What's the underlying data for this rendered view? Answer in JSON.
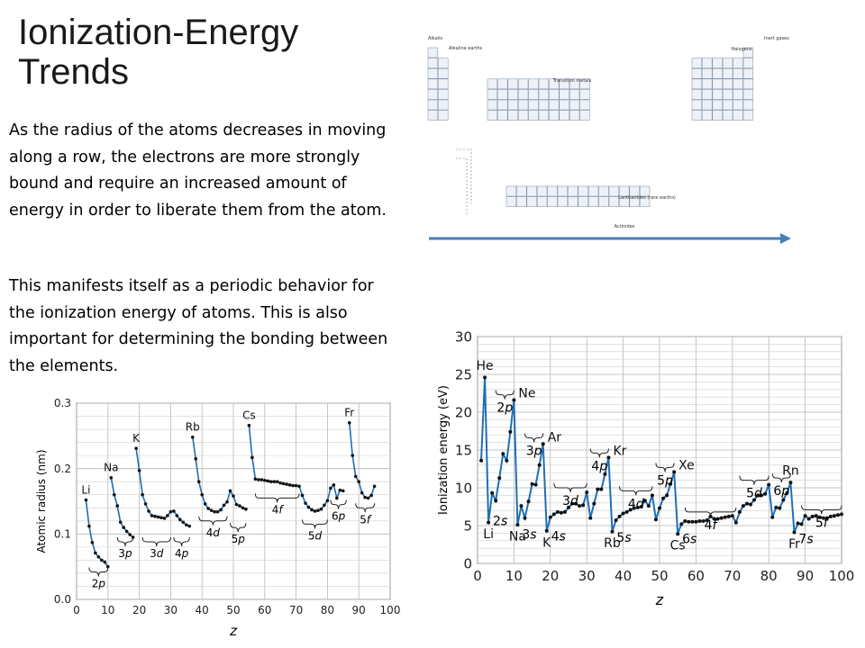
{
  "slide": {
    "title_line1": "Ionization-Energy",
    "title_line2": "Trends",
    "paragraph1": "As the radius of the atoms decreases in moving along a row, the electrons are more strongly bound and require an increased amount of energy in order to liberate them from the atom.",
    "paragraph2": "This manifests itself as a periodic behavior for the ionization energy of atoms.  This is also important for determining the bonding between the elements."
  },
  "periodic_table": {
    "labels": {
      "alkalis": "Alkalis",
      "alkaline_earths": "Alkaline earths",
      "transition_metals": "Transition metals",
      "halogens": "Halogens",
      "inert_gases": "Inert gases",
      "lanthanides": "Lanthanides (rare earths)",
      "actinides": "Actinides"
    },
    "arrow_color": "#4a7ebb"
  },
  "chart_data": [
    {
      "type": "line",
      "xlabel": "Z",
      "ylabel": "Atomic radius (nm)",
      "xlim": [
        0,
        100
      ],
      "ylim": [
        0.0,
        0.3
      ],
      "xticks": [
        0,
        10,
        20,
        30,
        40,
        50,
        60,
        70,
        80,
        90,
        100
      ],
      "xtick_labels": [
        "0",
        "10",
        "20",
        "30",
        "40",
        "50",
        "60",
        "70",
        "80",
        "90",
        "100"
      ],
      "yticks": [
        0.0,
        0.1,
        0.2,
        0.3
      ],
      "ytick_labels": [
        "0.0",
        "0.1",
        "0.2",
        "0.3"
      ],
      "grid": true,
      "line_color": "#1f6fb5",
      "series": [
        {
          "x": [
            3,
            4,
            5,
            6,
            7,
            8,
            9,
            10
          ],
          "y": [
            0.152,
            0.112,
            0.087,
            0.071,
            0.065,
            0.06,
            0.057,
            0.05
          ]
        },
        {
          "x": [
            11,
            12,
            13,
            14,
            15,
            16,
            17,
            18
          ],
          "y": [
            0.186,
            0.16,
            0.143,
            0.118,
            0.11,
            0.104,
            0.099,
            0.095
          ]
        },
        {
          "x": [
            19,
            20,
            21,
            22,
            23,
            24,
            25,
            26,
            27,
            28,
            29,
            30,
            31,
            32,
            33,
            34,
            35,
            36
          ],
          "y": [
            0.231,
            0.197,
            0.16,
            0.146,
            0.135,
            0.128,
            0.127,
            0.126,
            0.125,
            0.124,
            0.128,
            0.134,
            0.135,
            0.128,
            0.122,
            0.118,
            0.114,
            0.112
          ]
        },
        {
          "x": [
            37,
            38,
            39,
            40,
            41,
            42,
            43,
            44,
            45,
            46,
            47,
            48,
            49,
            50,
            51,
            52,
            53,
            54
          ],
          "y": [
            0.248,
            0.215,
            0.18,
            0.16,
            0.146,
            0.139,
            0.136,
            0.134,
            0.134,
            0.137,
            0.144,
            0.149,
            0.166,
            0.158,
            0.145,
            0.143,
            0.14,
            0.138
          ]
        },
        {
          "x": [
            55,
            56,
            57,
            58,
            59,
            60,
            61,
            62,
            63,
            64,
            65,
            66,
            67,
            68,
            69,
            70,
            71,
            72,
            73,
            74,
            75,
            76,
            77,
            78,
            79,
            80,
            81,
            82,
            83,
            84,
            85
          ],
          "y": [
            0.266,
            0.217,
            0.184,
            0.183,
            0.183,
            0.182,
            0.181,
            0.18,
            0.18,
            0.18,
            0.178,
            0.177,
            0.176,
            0.175,
            0.174,
            0.174,
            0.173,
            0.159,
            0.147,
            0.141,
            0.137,
            0.135,
            0.136,
            0.138,
            0.144,
            0.151,
            0.17,
            0.175,
            0.155,
            0.167,
            0.166
          ]
        },
        {
          "x": [
            87,
            88,
            89,
            90,
            91,
            92,
            93,
            94,
            95
          ],
          "y": [
            0.27,
            0.22,
            0.188,
            0.18,
            0.163,
            0.156,
            0.155,
            0.159,
            0.173
          ]
        }
      ],
      "annotations": [
        {
          "text": "Li",
          "x": 3,
          "y": 0.152
        },
        {
          "text": "Na",
          "x": 11,
          "y": 0.186
        },
        {
          "text": "K",
          "x": 19,
          "y": 0.231
        },
        {
          "text": "Rb",
          "x": 37,
          "y": 0.248
        },
        {
          "text": "Cs",
          "x": 55,
          "y": 0.266
        },
        {
          "text": "Fr",
          "x": 87,
          "y": 0.27
        }
      ],
      "braces": [
        {
          "from": 4,
          "to": 10,
          "label": "2p",
          "y": 0.042
        },
        {
          "from": 13,
          "to": 18,
          "label": "3p",
          "y": 0.088
        },
        {
          "from": 21,
          "to": 30,
          "label": "3d",
          "y": 0.088
        },
        {
          "from": 31,
          "to": 36,
          "label": "4p",
          "y": 0.088
        },
        {
          "from": 39,
          "to": 48,
          "label": "4d",
          "y": 0.12
        },
        {
          "from": 49,
          "to": 54,
          "label": "5p",
          "y": 0.11
        },
        {
          "from": 57,
          "to": 71,
          "label": "4f",
          "y": 0.155
        },
        {
          "from": 72,
          "to": 80,
          "label": "5d",
          "y": 0.115
        },
        {
          "from": 81,
          "to": 86,
          "label": "6p",
          "y": 0.145
        },
        {
          "from": 89,
          "to": 95,
          "label": "5f",
          "y": 0.14
        }
      ]
    },
    {
      "type": "line",
      "xlabel": "Z",
      "ylabel": "Ionization energy (eV)",
      "xlim": [
        0,
        100
      ],
      "ylim": [
        0,
        30
      ],
      "xticks": [
        0,
        10,
        20,
        30,
        40,
        50,
        60,
        70,
        80,
        90,
        100
      ],
      "xtick_labels": [
        "0",
        "10",
        "20",
        "30",
        "40",
        "50",
        "60",
        "70",
        "80",
        "90",
        "100"
      ],
      "yticks": [
        0,
        5,
        10,
        15,
        20,
        25,
        30
      ],
      "ytick_labels": [
        "0",
        "5",
        "10",
        "15",
        "20",
        "25",
        "30"
      ],
      "grid": true,
      "line_color": "#1f6fb5",
      "series": [
        {
          "x": [
            1,
            2,
            3,
            4,
            5,
            6,
            7,
            8,
            9,
            10,
            11,
            12,
            13,
            14,
            15,
            16,
            17,
            18,
            19,
            20,
            21,
            22,
            23,
            24,
            25,
            26,
            27,
            28,
            29,
            30,
            31,
            32,
            33,
            34,
            35,
            36,
            37,
            38,
            39,
            40,
            41,
            42,
            43,
            44,
            45,
            46,
            47,
            48,
            49,
            50,
            51,
            52,
            53,
            54,
            55,
            56,
            57,
            58,
            59,
            60,
            61,
            62,
            63,
            64,
            65,
            66,
            67,
            68,
            69,
            70,
            71,
            72,
            73,
            74,
            75,
            76,
            77,
            78,
            79,
            80,
            81,
            82,
            83,
            84,
            85,
            86,
            87,
            88,
            89,
            90,
            91,
            92,
            93,
            94,
            95,
            96,
            97,
            98,
            99,
            100
          ],
          "y": [
            13.6,
            24.6,
            5.4,
            9.3,
            8.3,
            11.3,
            14.5,
            13.6,
            17.4,
            21.6,
            5.1,
            7.6,
            6.0,
            8.2,
            10.5,
            10.4,
            13.0,
            15.8,
            4.3,
            6.1,
            6.5,
            6.8,
            6.7,
            6.8,
            7.4,
            7.9,
            7.9,
            7.6,
            7.7,
            9.4,
            6.0,
            7.9,
            9.8,
            9.8,
            11.8,
            14.0,
            4.2,
            5.7,
            6.2,
            6.6,
            6.8,
            7.1,
            7.3,
            7.4,
            7.5,
            8.3,
            7.6,
            9.0,
            5.8,
            7.3,
            8.6,
            9.0,
            10.5,
            12.1,
            3.9,
            5.2,
            5.6,
            5.5,
            5.5,
            5.5,
            5.6,
            5.6,
            5.7,
            6.2,
            5.9,
            5.9,
            6.0,
            6.1,
            6.2,
            6.3,
            5.4,
            6.8,
            7.6,
            7.9,
            7.8,
            8.4,
            9.0,
            9.0,
            9.2,
            10.4,
            6.1,
            7.4,
            7.3,
            8.4,
            9.3,
            10.7,
            4.1,
            5.3,
            5.2,
            6.3,
            5.9,
            6.2,
            6.3,
            6.1,
            6.0,
            6.0,
            6.2,
            6.3,
            6.4,
            6.5
          ]
        }
      ],
      "annotations": [
        {
          "text": "He",
          "x": 2,
          "y": 24.6,
          "pos": "above"
        },
        {
          "text": "Ne",
          "x": 10,
          "y": 21.6,
          "pos": "right"
        },
        {
          "text": "Ar",
          "x": 18,
          "y": 15.8,
          "pos": "right"
        },
        {
          "text": "Kr",
          "x": 36,
          "y": 14.0,
          "pos": "right"
        },
        {
          "text": "Xe",
          "x": 54,
          "y": 12.1,
          "pos": "right"
        },
        {
          "text": "Rn",
          "x": 86,
          "y": 10.7,
          "pos": "above"
        },
        {
          "text": "Li",
          "x": 3,
          "y": 5.4,
          "pos": "below"
        },
        {
          "text": "Na",
          "x": 11,
          "y": 5.1,
          "pos": "below"
        },
        {
          "text": "K",
          "x": 19,
          "y": 4.3,
          "pos": "below"
        },
        {
          "text": "Rb",
          "x": 37,
          "y": 4.2,
          "pos": "below"
        },
        {
          "text": "Cs",
          "x": 55,
          "y": 3.9,
          "pos": "below"
        },
        {
          "text": "Fr",
          "x": 87,
          "y": 4.1,
          "pos": "below"
        },
        {
          "text": "2s",
          "x": 4,
          "y": 6.2,
          "pos": "right"
        },
        {
          "text": "3s",
          "x": 12,
          "y": 4.4,
          "pos": "right"
        },
        {
          "text": "4s",
          "x": 20,
          "y": 4.2,
          "pos": "right"
        },
        {
          "text": "5s",
          "x": 38,
          "y": 4.0,
          "pos": "right"
        },
        {
          "text": "6s",
          "x": 56,
          "y": 3.8,
          "pos": "right"
        },
        {
          "text": "7s",
          "x": 88,
          "y": 3.8,
          "pos": "right"
        }
      ],
      "braces": [
        {
          "from": 5,
          "to": 10,
          "label": "2p",
          "y": 22.3
        },
        {
          "from": 13,
          "to": 18,
          "label": "3p",
          "y": 16.6
        },
        {
          "from": 21,
          "to": 30,
          "label": "3d",
          "y": 10.0
        },
        {
          "from": 31,
          "to": 36,
          "label": "4p",
          "y": 14.6
        },
        {
          "from": 39,
          "to": 48,
          "label": "4d",
          "y": 9.6
        },
        {
          "from": 49,
          "to": 54,
          "label": "5p",
          "y": 12.7
        },
        {
          "from": 57,
          "to": 71,
          "label": "4f",
          "y": 6.8
        },
        {
          "from": 72,
          "to": 80,
          "label": "5d",
          "y": 11.0
        },
        {
          "from": 81,
          "to": 86,
          "label": "6p",
          "y": 11.3
        },
        {
          "from": 89,
          "to": 100,
          "label": "5f",
          "y": 7.1
        }
      ]
    }
  ]
}
